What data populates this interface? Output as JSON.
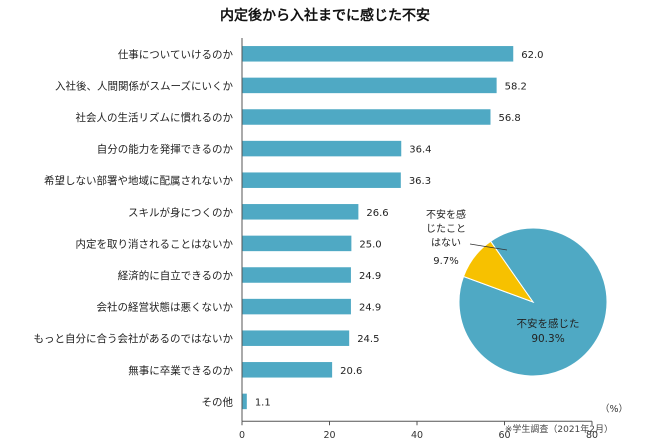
{
  "chart_data": [
    {
      "type": "bar",
      "title": "内定後から入社までに感じた不安",
      "orientation": "horizontal",
      "categories": [
        "仕事についていけるのか",
        "入社後、人間関係がスムーズにいくか",
        "社会人の生活リズムに慣れるのか",
        "自分の能力を発揮できるのか",
        "希望しない部署や地域に配属されないか",
        "スキルが身につくのか",
        "内定を取り消されることはないか",
        "経済的に自立できるのか",
        "会社の経営状態は悪くないか",
        "もっと自分に合う会社があるのではないか",
        "無事に卒業できるのか",
        "その他"
      ],
      "values": [
        62.0,
        58.2,
        56.8,
        36.4,
        36.3,
        26.6,
        25.0,
        24.9,
        24.9,
        24.5,
        20.6,
        1.1
      ],
      "value_labels": [
        "62.0",
        "58.2",
        "56.8",
        "36.4",
        "36.3",
        "26.6",
        "25.0",
        "24.9",
        "24.9",
        "24.5",
        "20.6",
        "1.1"
      ],
      "xlim": [
        0,
        80
      ],
      "xticks": [
        "0",
        "20",
        "40",
        "60",
        "80"
      ],
      "xunit": "（%）",
      "grid": false,
      "color": "#4FA9C4"
    },
    {
      "type": "pie",
      "slices": [
        {
          "name_lines": [
            "不安を感じた"
          ],
          "value": 90.3,
          "value_label": "90.3%",
          "color": "#4FA9C4"
        },
        {
          "name_lines": [
            "不安を感",
            "じたこと",
            "はない"
          ],
          "value": 9.7,
          "value_label": "9.7%",
          "color": "#F7C100"
        }
      ]
    }
  ],
  "source_note": "※学生調査（2021年2月）"
}
